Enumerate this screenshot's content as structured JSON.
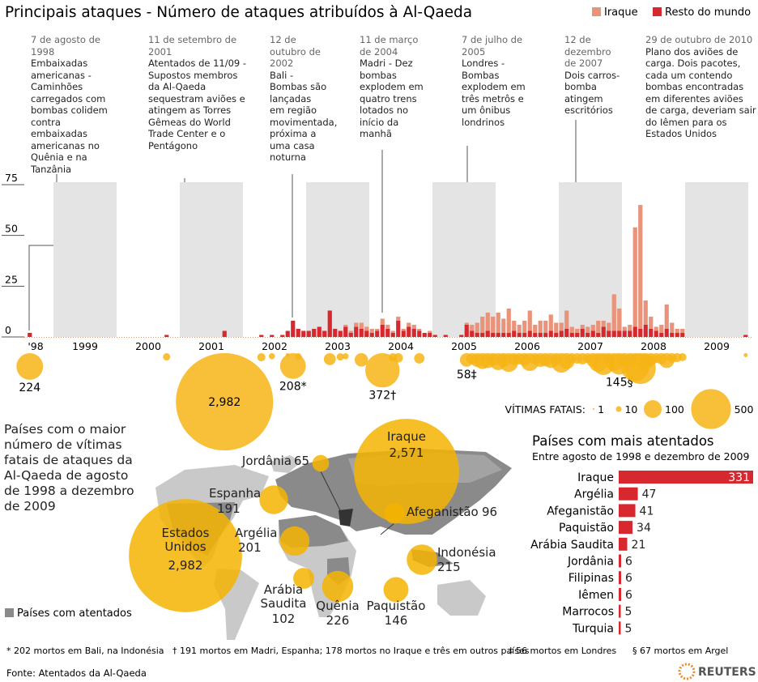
{
  "title": "Principais ataques - Número de ataques atribuídos à Al-Qaeda",
  "events": [
    {
      "date": "7 de agosto de 1998",
      "text": "Embaixadas americanas - Caminhões carregados com bombas colidem contra embaixadas americanas no Quênia e na Tanzânia"
    },
    {
      "date": "11 de setembro de 2001",
      "text": "Atentados de 11/09 - Supostos membros da Al-Qaeda sequestram aviões e atingem as Torres Gêmeas do World Trade Center e o Pentágono"
    },
    {
      "date": "12 de outubro de 2002",
      "text": "Bali - Bombas são lançadas em região movimentada, próxima a uma casa noturna"
    },
    {
      "date": "11 de março de 2004",
      "text": "Madri - Dez bombas explodem em quatro trens lotados no início da manhã"
    },
    {
      "date": "7 de julho de 2005",
      "text": "Londres - Bombas explodem em três metrôs e um ônibus londrinos"
    },
    {
      "date": "12 de dezembro de 2007",
      "text": "Dois carros-bomba atingem escritórios"
    },
    {
      "date": "29 de outubro de 2010",
      "text": "Plano dos aviões de carga. Dois pacotes, cada um contendo bombas encontradas em diferentes aviões de carga, deveriam sair do Iêmen para os Estados Unidos"
    }
  ],
  "chart_data": [
    {
      "type": "stacked-bar",
      "year_labels": [
        "'98",
        "1999",
        "2000",
        "2001",
        "2002",
        "2003",
        "2004",
        "2005",
        "2006",
        "2007",
        "2008",
        "2009"
      ],
      "ylim": [
        0,
        75
      ],
      "yticks": [
        0,
        25,
        50,
        75
      ],
      "series": [
        {
          "name": "Iraque",
          "color": "#e8937a",
          "values": [
            0,
            0,
            0,
            0,
            0,
            0,
            0,
            0,
            0,
            0,
            0,
            0,
            0,
            0,
            0,
            0,
            0,
            0,
            0,
            0,
            0,
            0,
            0,
            0,
            0,
            0,
            0,
            0,
            0,
            0,
            0,
            0,
            0,
            0,
            0,
            0,
            0,
            0,
            0,
            0,
            0,
            0,
            0,
            0,
            0,
            0,
            0,
            0,
            0,
            0,
            0,
            0,
            0,
            0,
            0,
            0,
            0,
            0,
            0,
            0,
            1,
            1,
            2,
            3,
            2,
            2,
            1,
            3,
            2,
            1,
            2,
            1,
            2,
            2,
            1,
            0,
            1,
            0,
            0,
            0,
            0,
            0,
            0,
            1,
            3,
            5,
            8,
            9,
            8,
            10,
            7,
            12,
            5,
            4,
            6,
            10,
            4,
            6,
            6,
            8,
            5,
            4,
            9,
            3,
            2,
            2,
            3,
            3,
            6,
            3,
            4,
            18,
            11,
            2,
            3,
            49,
            61,
            12,
            6,
            2,
            4,
            12,
            5,
            2,
            2,
            0,
            0,
            0,
            0,
            0,
            0,
            0,
            0,
            0,
            0,
            0,
            0
          ]
        },
        {
          "name": "Resto do mundo",
          "color": "#d7282f",
          "values": [
            2,
            0,
            0,
            0,
            0,
            0,
            0,
            0,
            0,
            0,
            0,
            0,
            0,
            0,
            0,
            0,
            0,
            0,
            0,
            0,
            0,
            0,
            0,
            0,
            0,
            0,
            1,
            0,
            0,
            0,
            0,
            0,
            0,
            0,
            0,
            0,
            0,
            3,
            0,
            0,
            0,
            0,
            0,
            0,
            1,
            0,
            1,
            0,
            1,
            3,
            8,
            4,
            3,
            3,
            4,
            5,
            3,
            13,
            4,
            3,
            5,
            2,
            5,
            4,
            3,
            2,
            3,
            6,
            4,
            2,
            8,
            3,
            5,
            4,
            3,
            2,
            2,
            1,
            0,
            1,
            0,
            0,
            1,
            6,
            3,
            2,
            2,
            3,
            2,
            2,
            2,
            2,
            3,
            2,
            2,
            3,
            2,
            2,
            2,
            3,
            2,
            3,
            4,
            2,
            2,
            4,
            2,
            3,
            2,
            5,
            3,
            3,
            3,
            3,
            3,
            5,
            4,
            6,
            4,
            3,
            2,
            4,
            2,
            2,
            2,
            0,
            0,
            0,
            0,
            0,
            0,
            0,
            0,
            0,
            0,
            0,
            1
          ]
        }
      ],
      "victims": {
        "title": "VÍTIMAS FATAIS:",
        "color": "#f7b416",
        "legend_values": [
          1,
          10,
          100,
          500
        ],
        "values": [
          224,
          null,
          null,
          null,
          null,
          null,
          null,
          null,
          null,
          null,
          null,
          null,
          null,
          null,
          null,
          null,
          null,
          null,
          null,
          null,
          null,
          null,
          null,
          null,
          null,
          null,
          17,
          null,
          null,
          null,
          null,
          null,
          null,
          null,
          null,
          null,
          null,
          2982,
          null,
          null,
          null,
          null,
          null,
          null,
          21,
          null,
          12,
          null,
          null,
          5,
          208,
          15,
          null,
          null,
          null,
          null,
          null,
          45,
          null,
          17,
          12,
          null,
          null,
          57,
          null,
          null,
          null,
          372,
          null,
          22,
          28,
          null,
          null,
          null,
          34,
          null,
          null,
          null,
          null,
          null,
          null,
          null,
          null,
          58,
          40,
          60,
          80,
          70,
          50,
          90,
          60,
          110,
          45,
          40,
          50,
          100,
          40,
          60,
          55,
          70,
          45,
          120,
          80,
          30,
          35,
          40,
          30,
          60,
          110,
          150,
          40,
          100,
          145,
          50,
          60,
          250,
          300,
          80,
          50,
          30,
          40,
          70,
          30,
          25,
          20,
          null,
          null,
          null,
          null,
          null,
          null,
          null,
          null,
          null,
          null,
          null,
          5
        ],
        "value_labels": [
          "224",
          null,
          null,
          null,
          null,
          null,
          null,
          null,
          null,
          null,
          null,
          null,
          null,
          null,
          null,
          null,
          null,
          null,
          null,
          null,
          null,
          null,
          null,
          null,
          null,
          null,
          null,
          null,
          null,
          null,
          null,
          null,
          null,
          null,
          null,
          null,
          null,
          "2,982",
          null,
          null,
          null,
          null,
          null,
          null,
          null,
          null,
          null,
          null,
          null,
          null,
          "208*",
          null,
          null,
          null,
          null,
          null,
          null,
          null,
          null,
          null,
          null,
          null,
          null,
          null,
          null,
          null,
          null,
          "372†",
          null,
          null,
          null,
          null,
          null,
          null,
          null,
          null,
          null,
          null,
          null,
          null,
          null,
          null,
          null,
          "58‡",
          null,
          null,
          null,
          null,
          null,
          null,
          null,
          null,
          null,
          null,
          null,
          null,
          null,
          null,
          null,
          null,
          null,
          null,
          null,
          null,
          null,
          null,
          null,
          null,
          null,
          null,
          null,
          null,
          "145§",
          null,
          null,
          null,
          null,
          null,
          null,
          null,
          null,
          null,
          null,
          null,
          null,
          null,
          null,
          null,
          null,
          null,
          null,
          null,
          null,
          null,
          null,
          null,
          null
        ]
      }
    },
    {
      "type": "bubble-map",
      "title": "Países com o maior número de vítimas fatais de ataques da Al-Qaeda de agosto de 1998 a dezembro de 2009",
      "legend": "Países com atentados",
      "color": "#f5b301",
      "categories": [
        "Iraque",
        "Estados Unidos",
        "Jordânia",
        "Espanha",
        "Argélia",
        "Afeganistão",
        "Indonésia",
        "Arábia Saudita",
        "Quênia",
        "Paquistão"
      ],
      "values": [
        2571,
        2982,
        65,
        191,
        201,
        96,
        215,
        102,
        226,
        146
      ],
      "value_labels": [
        "2,571",
        "2,982",
        "65",
        "191",
        "201",
        "96",
        "215",
        "102",
        "226",
        "146"
      ]
    },
    {
      "type": "hbar",
      "title": "Países com mais atentados",
      "subtitle": "Entre agosto de 1998 e dezembro de 2009",
      "color": "#d7282f",
      "categories": [
        "Iraque",
        "Argélia",
        "Afeganistão",
        "Paquistão",
        "Arábia Saudita",
        "Jordânia",
        "Filipinas",
        "Iêmen",
        "Marrocos",
        "Turquia"
      ],
      "values": [
        331,
        47,
        41,
        34,
        21,
        6,
        6,
        6,
        5,
        5
      ]
    }
  ],
  "footnotes": [
    "* 202 mortos em Bali, na Indonésia",
    "† 191 mortos em Madri, Espanha; 178 mortos no Iraque e três em outros países",
    "‡ 56 mortos em Londres",
    "§ 67 mortos em Argel"
  ],
  "source": "Fonte:  Atentados da Al-Qaeda",
  "logo": "REUTERS"
}
